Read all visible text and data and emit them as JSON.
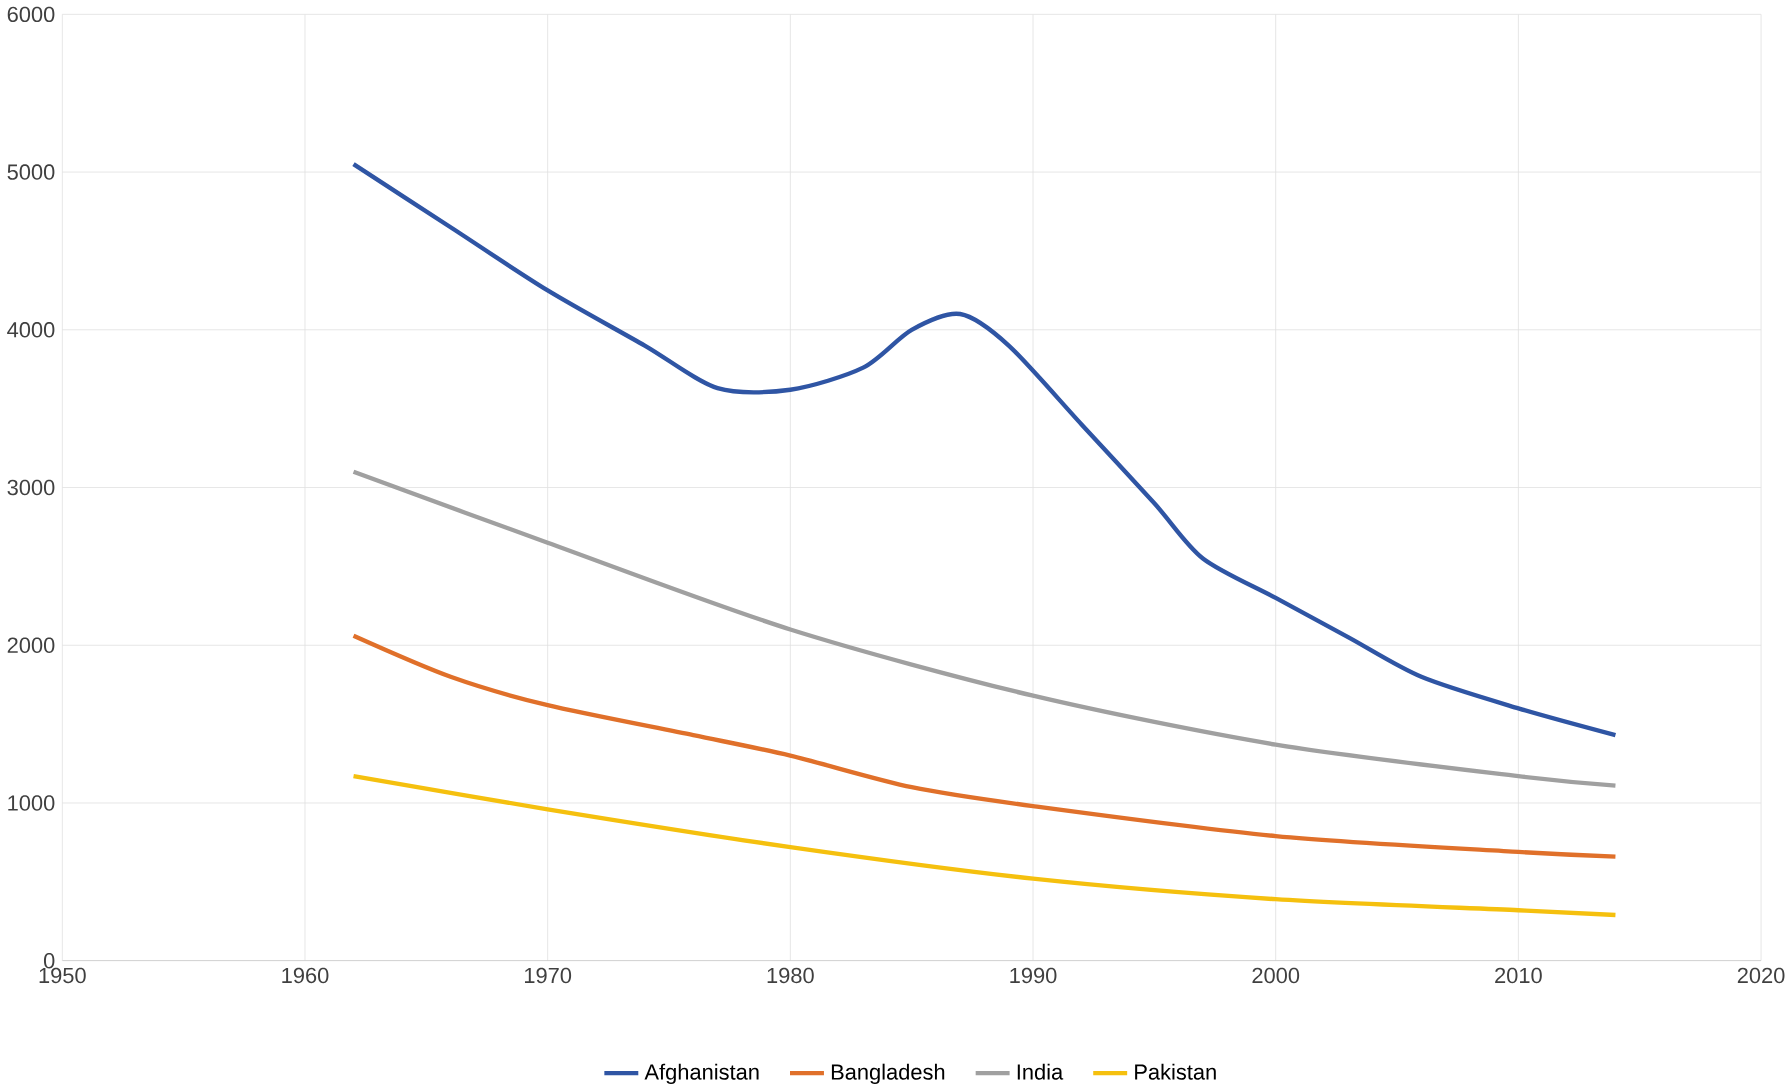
{
  "chart_data": {
    "type": "line",
    "xlim": [
      1950,
      2020
    ],
    "xticks": [
      1950,
      1960,
      1970,
      1980,
      1990,
      2000,
      2010,
      2020
    ],
    "ylim": [
      0,
      6000
    ],
    "yticks": [
      0,
      1000,
      2000,
      3000,
      4000,
      5000,
      6000
    ],
    "grid": true,
    "legend": "bottom",
    "marker": "none",
    "series": [
      {
        "name": "Afghanistan",
        "color": "#2f55a4",
        "x": [
          1962,
          1966,
          1970,
          1974,
          1977,
          1980,
          1983,
          1985,
          1987,
          1989,
          1992,
          1995,
          1997,
          2000,
          2003,
          2006,
          2010,
          2014
        ],
        "values": [
          5050,
          4650,
          4250,
          3900,
          3630,
          3620,
          3760,
          4000,
          4100,
          3900,
          3400,
          2900,
          2550,
          2300,
          2050,
          1800,
          1600,
          1430
        ]
      },
      {
        "name": "Bangladesh",
        "color": "#e0702a",
        "x": [
          1962,
          1966,
          1970,
          1976,
          1980,
          1985,
          1990,
          2000,
          2010,
          2014
        ],
        "values": [
          2060,
          1800,
          1620,
          1430,
          1300,
          1100,
          980,
          790,
          690,
          660
        ]
      },
      {
        "name": "India",
        "color": "#a0a0a0",
        "x": [
          1962,
          1970,
          1980,
          1990,
          2000,
          2010,
          2014
        ],
        "values": [
          3100,
          2650,
          2100,
          1680,
          1370,
          1170,
          1110
        ]
      },
      {
        "name": "Pakistan",
        "color": "#f5c00e",
        "x": [
          1962,
          1970,
          1980,
          1990,
          2000,
          2010,
          2014
        ],
        "values": [
          1170,
          960,
          720,
          520,
          390,
          320,
          290
        ]
      }
    ]
  }
}
